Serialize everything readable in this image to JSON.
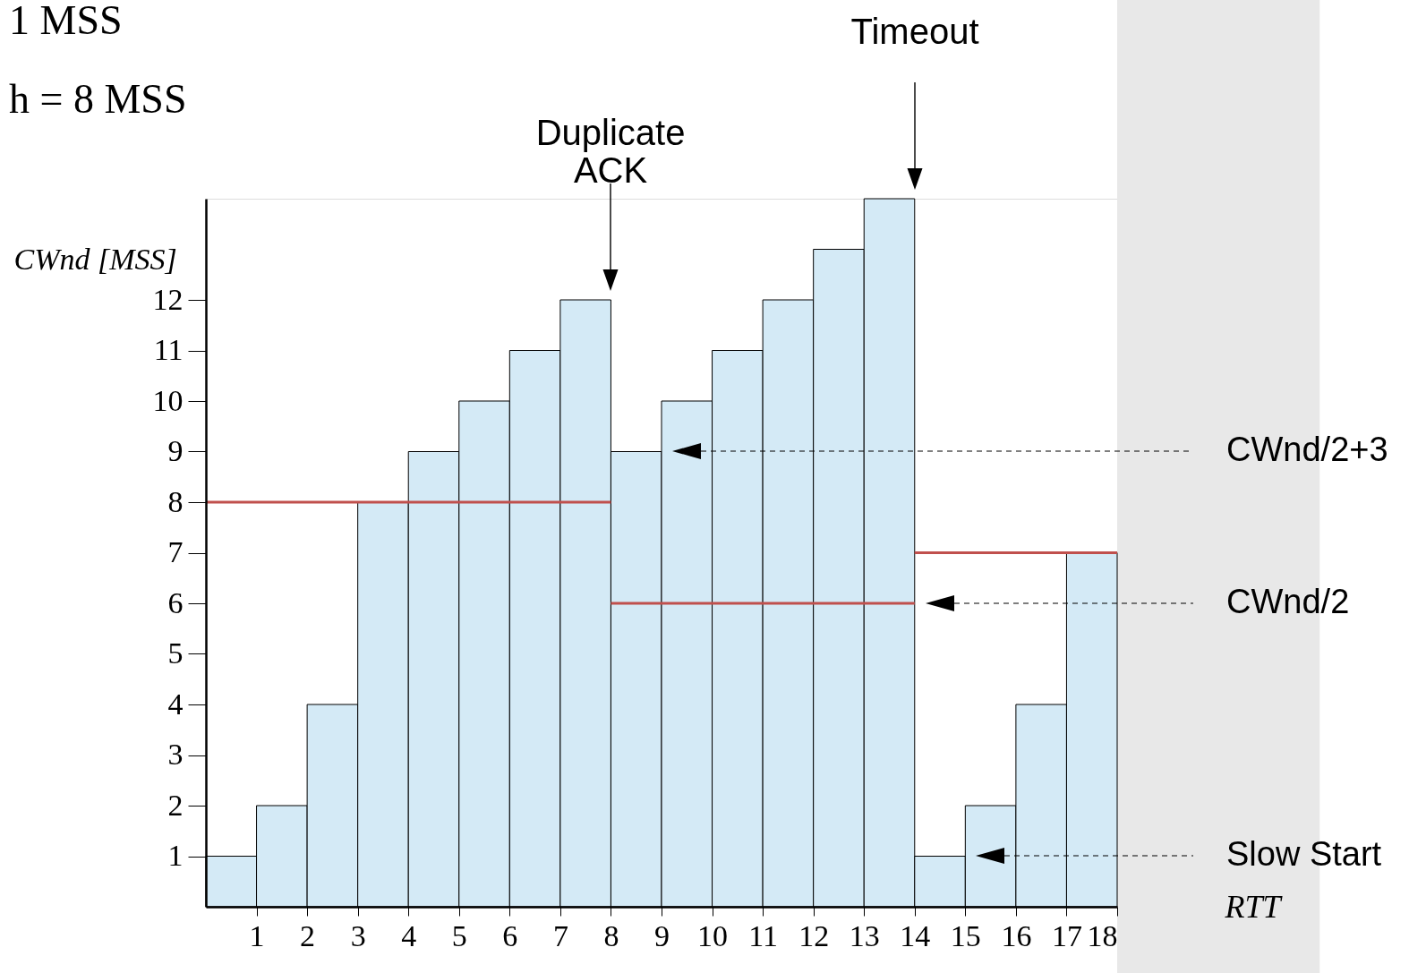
{
  "chart_data": {
    "type": "histogram",
    "xlabel": "RTT",
    "ylabel": "CWnd [MSS]",
    "bins": [
      0,
      1,
      2,
      3,
      4,
      5,
      6,
      7,
      8,
      9,
      10,
      11,
      12,
      13,
      14,
      15,
      16,
      17,
      18
    ],
    "values": [
      1,
      2,
      4,
      8,
      9,
      10,
      11,
      12,
      9,
      10,
      11,
      12,
      13,
      14,
      1,
      2,
      4,
      7
    ],
    "color": "#d4eaf6",
    "series": [
      {
        "type": "line",
        "color": "#c0504d",
        "x": [
          0,
          8
        ],
        "values": [
          8,
          8
        ]
      },
      {
        "type": "line",
        "color": "#c0504d",
        "x": [
          8,
          14
        ],
        "values": [
          6,
          6
        ]
      },
      {
        "type": "line",
        "color": "#c0504d",
        "x": [
          14,
          18
        ],
        "values": [
          7,
          7
        ]
      }
    ],
    "xlim": [
      0,
      18
    ],
    "ylim": [
      0,
      14
    ],
    "xticks": [
      1,
      2,
      3,
      4,
      5,
      6,
      7,
      8,
      9,
      10,
      11,
      12,
      13,
      14,
      15,
      16,
      17,
      18
    ],
    "yticks": [
      1,
      2,
      3,
      4,
      5,
      6,
      7,
      8,
      9,
      10,
      11,
      12
    ],
    "bands": [
      {
        "axis": "x",
        "from": 18,
        "to": 22,
        "color": "#e8e8e8"
      }
    ],
    "grid": false,
    "annotations": [
      "1 MSS",
      "h = 8 MSS",
      "Duplicate ACK",
      "Timeout",
      "CWnd/2+3",
      "CWnd/2",
      "Slow Start"
    ]
  }
}
